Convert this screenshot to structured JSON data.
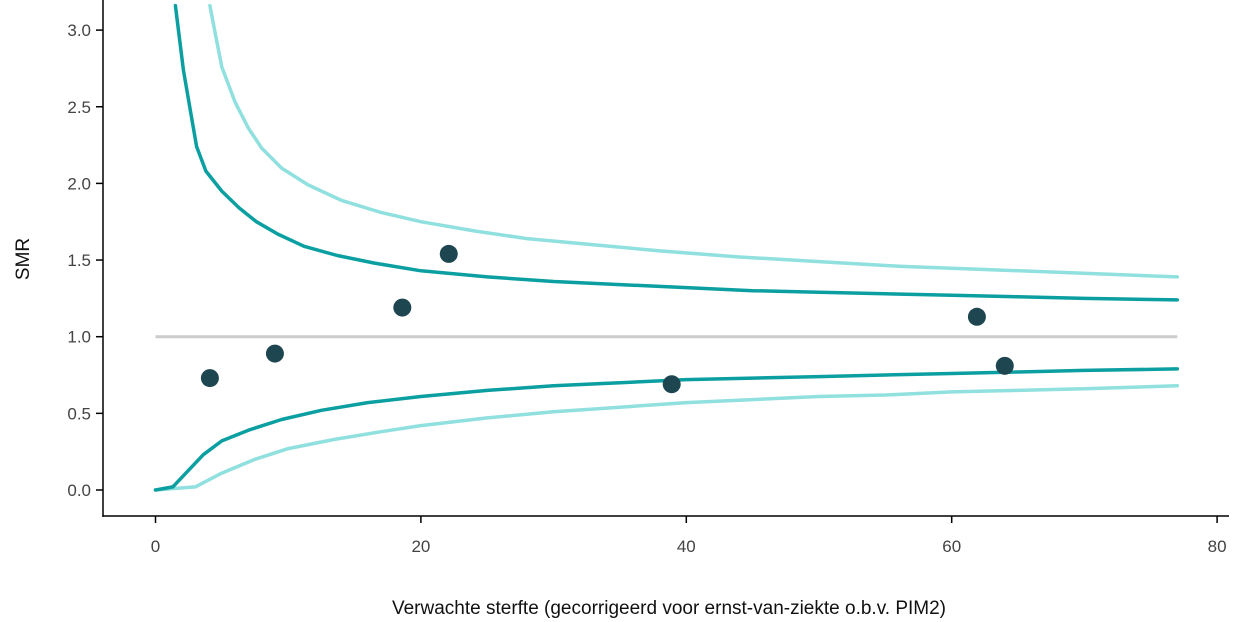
{
  "chart_data": {
    "type": "scatter",
    "title": "",
    "xlabel": "Verwachte sterfte (gecorrigeerd voor ernst-van-ziekte o.b.v. PIM2)",
    "ylabel": "SMR",
    "xlim": [
      -4,
      81
    ],
    "ylim": [
      -0.17,
      3.16
    ],
    "x_ticks": [
      0,
      20,
      40,
      60,
      80
    ],
    "x_tick_labels": [
      "0",
      "20",
      "40",
      "60",
      "80"
    ],
    "y_ticks": [
      0.0,
      0.5,
      1.0,
      1.5,
      2.0,
      2.5,
      3.0
    ],
    "y_tick_labels": [
      "0.0",
      "0.5",
      "1.0",
      "1.5",
      "2.0",
      "2.5",
      "3.0"
    ],
    "grid": false,
    "colors": {
      "points": "#1e4650",
      "inner_limits": "#0b9fa1",
      "outer_limits": "#8fe0de",
      "reference": "#cccccc",
      "axis": "#000000"
    },
    "reference_line": {
      "y": 1.0,
      "x_range": [
        0,
        77
      ]
    },
    "points": [
      {
        "x": 4.1,
        "y": 0.73
      },
      {
        "x": 9.0,
        "y": 0.89
      },
      {
        "x": 18.6,
        "y": 1.19
      },
      {
        "x": 22.1,
        "y": 1.54
      },
      {
        "x": 38.9,
        "y": 0.69
      },
      {
        "x": 61.9,
        "y": 1.13
      },
      {
        "x": 64.0,
        "y": 0.81
      }
    ],
    "limits": {
      "inner_upper": {
        "x": [
          1.5,
          2.1,
          2.7,
          3.1,
          3.8,
          5.0,
          6.3,
          7.6,
          9.2,
          11.2,
          13.7,
          16.5,
          20.0,
          25.0,
          30.0,
          35.0,
          40.0,
          45.0,
          50.0,
          55.0,
          60.0,
          65.0,
          70.0,
          77.0
        ],
        "y": [
          3.16,
          2.74,
          2.44,
          2.24,
          2.08,
          1.95,
          1.84,
          1.75,
          1.67,
          1.59,
          1.53,
          1.48,
          1.43,
          1.39,
          1.36,
          1.34,
          1.32,
          1.3,
          1.29,
          1.28,
          1.27,
          1.26,
          1.25,
          1.24
        ]
      },
      "inner_lower": {
        "x": [
          0,
          1.3,
          3.6,
          5.0,
          7.0,
          9.5,
          12.5,
          16.0,
          20.0,
          25.0,
          30.0,
          35.0,
          40.0,
          45.0,
          50.0,
          55.0,
          60.0,
          65.0,
          70.0,
          77.0
        ],
        "y": [
          0.0,
          0.02,
          0.23,
          0.32,
          0.39,
          0.46,
          0.52,
          0.57,
          0.61,
          0.65,
          0.68,
          0.7,
          0.72,
          0.73,
          0.74,
          0.75,
          0.76,
          0.77,
          0.78,
          0.79
        ]
      },
      "outer_upper": {
        "x": [
          4.1,
          4.5,
          5.0,
          6.0,
          7.0,
          8.0,
          9.5,
          11.5,
          14.0,
          17.0,
          20.0,
          24.0,
          28.0,
          33.0,
          38.0,
          44.0,
          50.0,
          56.0,
          62.0,
          68.0,
          77.0
        ],
        "y": [
          3.16,
          2.98,
          2.76,
          2.53,
          2.36,
          2.23,
          2.1,
          1.99,
          1.89,
          1.81,
          1.75,
          1.69,
          1.64,
          1.6,
          1.56,
          1.52,
          1.49,
          1.46,
          1.44,
          1.42,
          1.39
        ]
      },
      "outer_lower": {
        "x": [
          0,
          3.0,
          5.0,
          7.5,
          10.0,
          13.5,
          17.0,
          20.0,
          25.0,
          30.0,
          35.0,
          40.0,
          45.0,
          50.0,
          55.0,
          60.0,
          65.0,
          70.0,
          77.0
        ],
        "y": [
          0.0,
          0.02,
          0.11,
          0.2,
          0.27,
          0.33,
          0.38,
          0.42,
          0.47,
          0.51,
          0.54,
          0.57,
          0.59,
          0.61,
          0.62,
          0.64,
          0.65,
          0.66,
          0.68
        ]
      }
    }
  }
}
